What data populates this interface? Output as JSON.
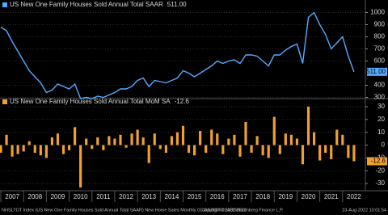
{
  "chart_data": [
    {
      "type": "line",
      "legend": "US New One Family Houses Sold Annual Total SAAR",
      "last_label": "511.00",
      "xlim": [
        2007,
        2023
      ],
      "ylim": [
        250,
        1050
      ],
      "yticks": [
        300,
        400,
        600,
        700,
        800,
        900,
        1000
      ],
      "grid": true,
      "x": [
        2007.0,
        2007.25,
        2007.5,
        2007.75,
        2008.0,
        2008.25,
        2008.5,
        2008.75,
        2009.0,
        2009.25,
        2009.5,
        2009.75,
        2010.0,
        2010.25,
        2010.5,
        2010.75,
        2011.0,
        2011.25,
        2011.5,
        2011.75,
        2012.0,
        2012.25,
        2012.5,
        2012.75,
        2013.0,
        2013.25,
        2013.5,
        2013.75,
        2014.0,
        2014.25,
        2014.5,
        2014.75,
        2015.0,
        2015.25,
        2015.5,
        2015.75,
        2016.0,
        2016.25,
        2016.5,
        2016.75,
        2017.0,
        2017.25,
        2017.5,
        2017.75,
        2018.0,
        2018.25,
        2018.5,
        2018.75,
        2019.0,
        2019.25,
        2019.5,
        2019.75,
        2020.0,
        2020.25,
        2020.5,
        2020.75,
        2021.0,
        2021.25,
        2021.5,
        2021.75,
        2022.0,
        2022.25,
        2022.5
      ],
      "series": [
        {
          "name": "US New One Family Houses Sold Annual Total SAAR",
          "color": "#55aaff",
          "values": [
            880,
            850,
            760,
            680,
            600,
            520,
            470,
            420,
            340,
            360,
            410,
            390,
            370,
            410,
            290,
            300,
            290,
            310,
            300,
            320,
            340,
            370,
            370,
            390,
            440,
            460,
            390,
            440,
            430,
            420,
            440,
            460,
            520,
            500,
            470,
            500,
            530,
            560,
            600,
            580,
            600,
            610,
            580,
            650,
            650,
            640,
            600,
            560,
            650,
            650,
            690,
            720,
            740,
            580,
            960,
            1000,
            900,
            820,
            700,
            750,
            800,
            640,
            511
          ]
        }
      ]
    },
    {
      "type": "bar",
      "legend": "US New One Family Houses Sold Annual Total MoM SA",
      "last_label": "-12.6",
      "xlim": [
        2007,
        2023
      ],
      "ylim": [
        -35,
        35
      ],
      "yticks": [
        -30,
        -20,
        -10,
        0,
        10,
        20,
        30
      ],
      "xticks": [
        2007,
        2008,
        2009,
        2010,
        2011,
        2012,
        2013,
        2014,
        2015,
        2016,
        2017,
        2018,
        2019,
        2020,
        2021,
        2022
      ],
      "grid": true,
      "x": [
        2007.0,
        2007.25,
        2007.5,
        2007.75,
        2008.0,
        2008.25,
        2008.5,
        2008.75,
        2009.0,
        2009.25,
        2009.5,
        2009.75,
        2010.0,
        2010.25,
        2010.5,
        2010.75,
        2011.0,
        2011.25,
        2011.5,
        2011.75,
        2012.0,
        2012.25,
        2012.5,
        2012.75,
        2013.0,
        2013.25,
        2013.5,
        2013.75,
        2014.0,
        2014.25,
        2014.5,
        2014.75,
        2015.0,
        2015.25,
        2015.5,
        2015.75,
        2016.0,
        2016.25,
        2016.5,
        2016.75,
        2017.0,
        2017.25,
        2017.5,
        2017.75,
        2018.0,
        2018.25,
        2018.5,
        2018.75,
        2019.0,
        2019.25,
        2019.5,
        2019.75,
        2020.0,
        2020.25,
        2020.5,
        2020.75,
        2021.0,
        2021.25,
        2021.5,
        2021.75,
        2022.0,
        2022.25,
        2022.5
      ],
      "series": [
        {
          "name": "US New One Family Houses Sold Annual Total MoM SA",
          "color": "#f0a030",
          "values": [
            -6,
            8,
            -9,
            -7,
            -5,
            3,
            -6,
            -8,
            -10,
            6,
            9,
            -7,
            -4,
            14,
            -33,
            5,
            -3,
            6,
            -4,
            7,
            5,
            8,
            -2,
            9,
            12,
            6,
            -14,
            9,
            -3,
            -6,
            7,
            10,
            15,
            -6,
            -8,
            11,
            -6,
            12,
            9,
            -7,
            5,
            8,
            -9,
            18,
            -6,
            7,
            -8,
            -10,
            22,
            -7,
            9,
            8,
            5,
            -15,
            30,
            10,
            -12,
            -6,
            -11,
            12,
            8,
            -10,
            -12.6
          ]
        }
      ]
    }
  ],
  "footer": {
    "left": "NHSLTOT Index (US New One Family Houses Sold Annual Total SAAR) New Home Sales  Monthly 01JAN2007-01AUG2022",
    "center": "Copyright© 2022 Bloomberg Finance L.P.",
    "right": "23-Aug-2022 10:01:54"
  }
}
